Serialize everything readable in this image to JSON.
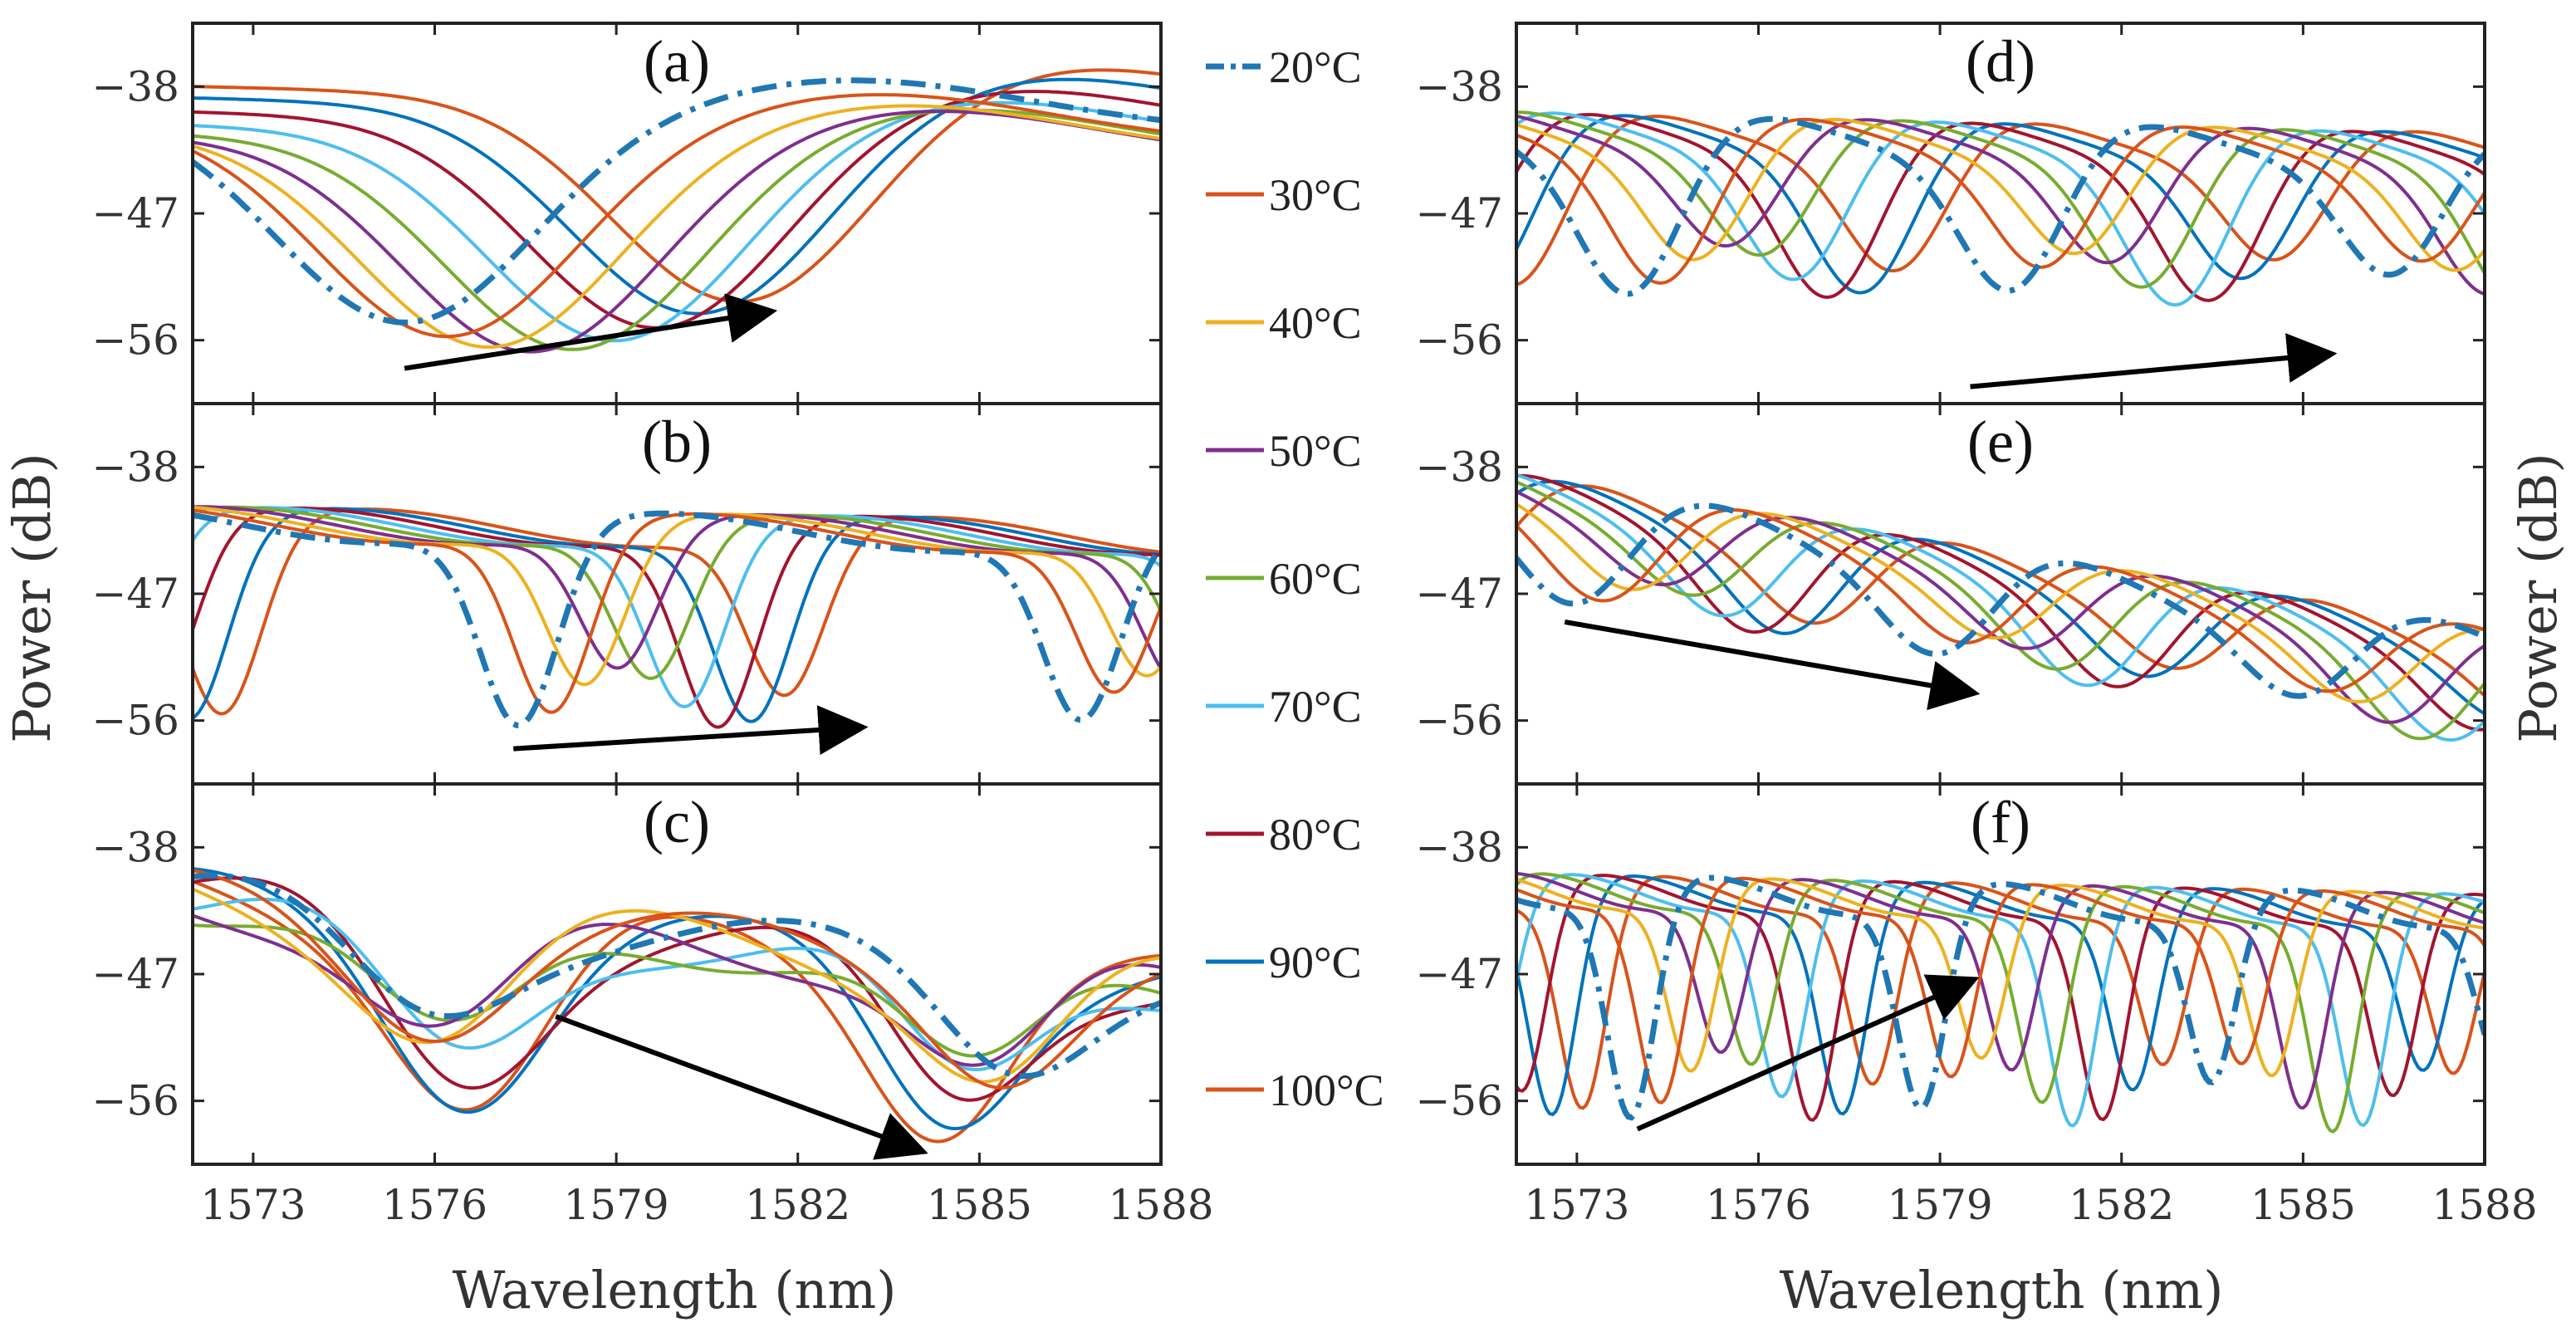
{
  "figure": {
    "xlabel": "Wavelength (nm)",
    "ylabel": "Power (dB)"
  },
  "legend": {
    "entries": [
      {
        "label": "20°C",
        "color": "#1f77b4",
        "style": "dashdot"
      },
      {
        "label": "30°C",
        "color": "#d95319",
        "style": "solid"
      },
      {
        "label": "40°C",
        "color": "#edb120",
        "style": "solid"
      },
      {
        "label": "50°C",
        "color": "#7e2f8e",
        "style": "solid"
      },
      {
        "label": "60°C",
        "color": "#77ac30",
        "style": "solid"
      },
      {
        "label": "70°C",
        "color": "#4dbeee",
        "style": "solid"
      },
      {
        "label": "80°C",
        "color": "#a2142f",
        "style": "solid"
      },
      {
        "label": "90°C",
        "color": "#0072bd",
        "style": "solid"
      },
      {
        "label": "100°C",
        "color": "#d95319",
        "style": "solid"
      }
    ]
  },
  "chart_data": [
    {
      "id": "a",
      "label": "(a)",
      "type": "line",
      "xlim": [
        1572,
        1588
      ],
      "ylim": [
        -60.5,
        -33.5
      ],
      "xticks": [
        1573,
        1576,
        1579,
        1582,
        1585,
        1588
      ],
      "xtick_labels": [
        "1573",
        "1576",
        "1579",
        "1582",
        "1585",
        "1588"
      ],
      "yticks": [
        -38,
        -47,
        -56
      ],
      "ytick_labels": [
        "−38",
        "−47",
        "−56"
      ],
      "model": {
        "kind": "single",
        "dip_x0": 1575.5,
        "dip_shift_per_step": 0.7,
        "trend_start": 0,
        "trend_end": 0,
        "baseline_top": -39.5,
        "baseline_bottom": -55.0,
        "peak_x": 1583.0,
        "width": 3.0
      },
      "arrow": {
        "from": [
          1575.5,
          -58.0
        ],
        "to": [
          1581.5,
          -54.0
        ]
      }
    },
    {
      "id": "b",
      "label": "(b)",
      "type": "line",
      "xlim": [
        1572,
        1588
      ],
      "ylim": [
        -60.5,
        -33.5
      ],
      "xticks": [
        1573,
        1576,
        1579,
        1582,
        1585,
        1588
      ],
      "xtick_labels": [
        "1573",
        "1576",
        "1579",
        "1582",
        "1585",
        "1588"
      ],
      "yticks": [
        -38,
        -47,
        -56
      ],
      "ytick_labels": [
        "−38",
        "−47",
        "−56"
      ],
      "model": {
        "kind": "comb",
        "fsr": 9.3,
        "dip_x0": 1577.4,
        "dip_shift_per_step": 0.55,
        "dip_depth": 14,
        "top": -42.0,
        "top_end": -43.0,
        "dip_width": 0.9
      },
      "arrow": {
        "from": [
          1577.3,
          -58.0
        ],
        "to": [
          1583.0,
          -56.5
        ]
      }
    },
    {
      "id": "c",
      "label": "(c)",
      "type": "line",
      "xlim": [
        1572,
        1588
      ],
      "ylim": [
        -60.5,
        -33.5
      ],
      "xticks": [
        1573,
        1576,
        1579,
        1582,
        1585,
        1588
      ],
      "xtick_labels": [
        "1573",
        "1576",
        "1579",
        "1582",
        "1585",
        "1588"
      ],
      "yticks": [
        -38,
        -47,
        -56
      ],
      "ytick_labels": [
        "−38",
        "−47",
        "−56"
      ],
      "model": {
        "kind": "double",
        "dip1_x0": 1575.8,
        "dip2_x0": 1585.5,
        "dip_shift_per_step": 0.05,
        "top_start": -41.5,
        "top_end": -47.5
      },
      "arrow": {
        "from": [
          1578.0,
          -50.0
        ],
        "to": [
          1584.0,
          -59.5
        ]
      }
    },
    {
      "id": "d",
      "label": "(d)",
      "type": "line",
      "xlim": [
        1572,
        1588
      ],
      "ylim": [
        -60.5,
        -33.5
      ],
      "xticks": [
        1573,
        1576,
        1579,
        1582,
        1585,
        1588
      ],
      "xtick_labels": [
        "1573",
        "1576",
        "1579",
        "1582",
        "1585",
        "1588"
      ],
      "yticks": [
        -38,
        -47,
        -56
      ],
      "ytick_labels": [
        "−38",
        "−47",
        "−56"
      ],
      "model": {
        "kind": "comb",
        "fsr": 6.3,
        "dip_x0": 1573.9,
        "dip_shift_per_step": 0.55,
        "dip_depth": 12,
        "top": -40.5,
        "top_end": -42.0,
        "dip_width": 1.2
      },
      "arrow": {
        "from": [
          1579.5,
          -59.3
        ],
        "to": [
          1585.4,
          -57.0
        ]
      }
    },
    {
      "id": "e",
      "label": "(e)",
      "type": "line",
      "xlim": [
        1572,
        1588
      ],
      "ylim": [
        -60.5,
        -33.5
      ],
      "xticks": [
        1573,
        1576,
        1579,
        1582,
        1585,
        1588
      ],
      "xtick_labels": [
        "1573",
        "1576",
        "1579",
        "1582",
        "1585",
        "1588"
      ],
      "yticks": [
        -38,
        -47,
        -56
      ],
      "ytick_labels": [
        "−38",
        "−47",
        "−56"
      ],
      "model": {
        "kind": "comb",
        "fsr": 6.0,
        "dip_x0": 1573.0,
        "dip_shift_per_step": 0.5,
        "dip_depth": 8,
        "top": -39.0,
        "top_end": -50.0,
        "dip_width": 1.3
      },
      "arrow": {
        "from": [
          1572.8,
          -49.0
        ],
        "to": [
          1579.5,
          -54.0
        ]
      }
    },
    {
      "id": "f",
      "label": "(f)",
      "type": "line",
      "xlim": [
        1572,
        1588
      ],
      "ylim": [
        -60.5,
        -33.5
      ],
      "xticks": [
        1573,
        1576,
        1579,
        1582,
        1585,
        1588
      ],
      "xtick_labels": [
        "1573",
        "1576",
        "1579",
        "1582",
        "1585",
        "1588"
      ],
      "yticks": [
        -38,
        -47,
        -56
      ],
      "ytick_labels": [
        "−38",
        "−47",
        "−56"
      ],
      "model": {
        "kind": "comb",
        "fsr": 4.8,
        "dip_x0": 1573.9,
        "dip_shift_per_step": 0.5,
        "dip_depth": 16,
        "top": -41.0,
        "top_end": -42.5,
        "dip_width": 0.55
      },
      "arrow": {
        "from": [
          1574.0,
          -58.0
        ],
        "to": [
          1579.5,
          -47.5
        ]
      }
    }
  ]
}
